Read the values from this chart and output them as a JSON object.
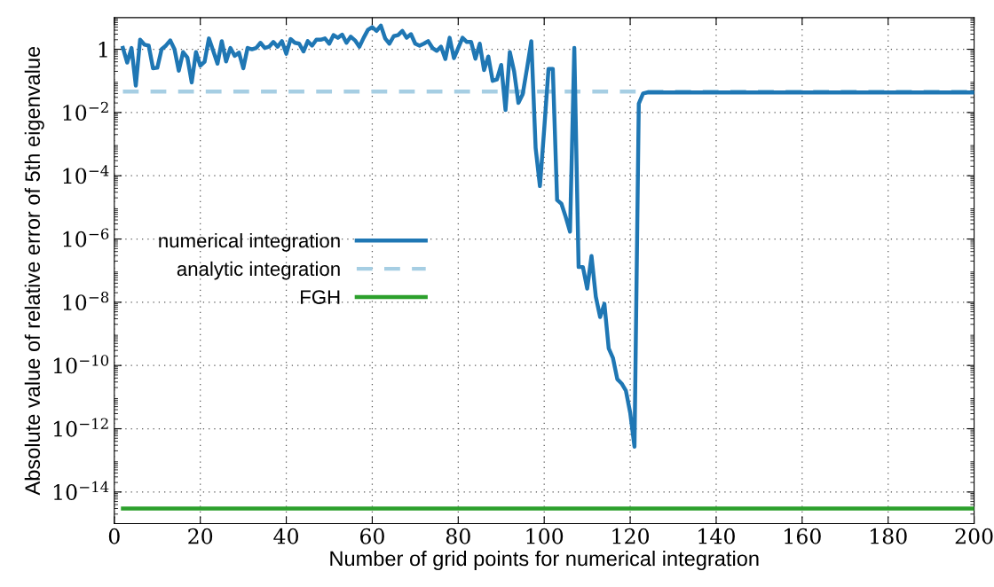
{
  "chart_data": {
    "type": "line",
    "xlabel": "Number of grid points for numerical integration",
    "ylabel": "Absolute value of relative error of 5th eigenvalue",
    "log": "y",
    "grid": true,
    "legend": "center left",
    "marker": "none",
    "xlim": [
      0,
      200
    ],
    "xticks": [
      0,
      20,
      40,
      60,
      80,
      100,
      120,
      140,
      160,
      180,
      200
    ],
    "ylim": [
      1e-15,
      10
    ],
    "yticks": [
      {
        "value": 1,
        "label": "1"
      },
      {
        "value": 0.01,
        "label": "10$^{−2}$"
      },
      {
        "value": 0.0001,
        "label": "10$^{−4}$"
      },
      {
        "value": 1e-06,
        "label": "10$^{−6}$"
      },
      {
        "value": 1e-08,
        "label": "10$^{−8}$"
      },
      {
        "value": 1e-10,
        "label": "10$^{−10}$"
      },
      {
        "value": 1e-12,
        "label": "10$^{−12}$"
      },
      {
        "value": 1e-14,
        "label": "10$^{−14}$"
      }
    ],
    "series": [
      {
        "name": "numerical integration",
        "color": "#1f77b4",
        "line_style": "solid",
        "x": [
          2,
          3,
          4,
          5,
          6,
          7,
          8,
          9,
          10,
          11,
          12,
          13,
          14,
          15,
          16,
          17,
          18,
          19,
          20,
          21,
          22,
          23,
          24,
          25,
          26,
          27,
          28,
          29,
          30,
          31,
          32,
          33,
          34,
          35,
          36,
          37,
          38,
          39,
          40,
          41,
          42,
          43,
          44,
          45,
          46,
          47,
          48,
          49,
          50,
          51,
          52,
          53,
          54,
          55,
          56,
          57,
          58,
          59,
          60,
          61,
          62,
          63,
          64,
          65,
          66,
          67,
          68,
          69,
          70,
          71,
          72,
          73,
          74,
          75,
          76,
          77,
          78,
          79,
          80,
          81,
          82,
          83,
          84,
          85,
          86,
          87,
          88,
          89,
          90,
          91,
          92,
          93,
          94,
          95,
          96,
          97,
          98,
          99,
          100,
          101,
          102,
          103,
          104,
          105,
          106,
          107,
          108,
          109,
          110,
          111,
          112,
          113,
          114,
          115,
          116,
          117,
          118,
          119,
          120,
          121,
          122,
          123,
          124,
          200
        ],
        "values": [
          1.1,
          0.38,
          1.1,
          0.071,
          2.0,
          1.4,
          1.3,
          0.25,
          0.26,
          1.0,
          1.3,
          1.9,
          1.0,
          0.21,
          0.81,
          0.55,
          0.089,
          0.81,
          0.3,
          0.4,
          2.2,
          0.89,
          0.35,
          1.8,
          0.41,
          1.1,
          0.62,
          0.78,
          0.25,
          1.1,
          1.0,
          1.1,
          1.6,
          1.1,
          1.2,
          1.7,
          1.2,
          1.8,
          0.72,
          2.1,
          1.6,
          1.5,
          0.85,
          1.8,
          1.3,
          2.0,
          2.0,
          2.2,
          1.5,
          2.8,
          2.3,
          2.9,
          1.6,
          2.5,
          1.9,
          1.2,
          2.3,
          4.1,
          5.0,
          3.8,
          5.6,
          2.2,
          1.5,
          2.6,
          2.8,
          3.8,
          2.3,
          3.0,
          1.5,
          1.3,
          1.5,
          1.8,
          1.1,
          0.89,
          1.2,
          0.49,
          2.3,
          0.52,
          1.1,
          2.3,
          1.7,
          1.7,
          0.5,
          1.5,
          0.22,
          0.59,
          0.1,
          0.11,
          0.32,
          0.012,
          0.81,
          0.2,
          0.02,
          0.038,
          0.25,
          1.8,
          0.00076,
          4.7e-05,
          0.003,
          0.24,
          0.24,
          1.7e-05,
          1.3e-05,
          5e-06,
          1.7e-06,
          1.1,
          1.3e-07,
          1.3e-07,
          2.7e-08,
          2.9e-07,
          1.5e-08,
          3.4e-09,
          8.9e-09,
          3.5e-10,
          1.7e-10,
          3.7e-11,
          2.7e-11,
          1.6e-11,
          3.2e-12,
          2.7e-13,
          0.019,
          0.04,
          0.043,
          0.043
        ]
      },
      {
        "name": "analytic integration",
        "color": "#a6cee3",
        "line_style": "dashed",
        "x": [
          2,
          200
        ],
        "values": [
          0.046,
          0.046
        ]
      },
      {
        "name": "FGH",
        "color": "#2ca02c",
        "line_style": "solid",
        "x": [
          2,
          200
        ],
        "values": [
          3e-15,
          3e-15
        ]
      }
    ]
  }
}
